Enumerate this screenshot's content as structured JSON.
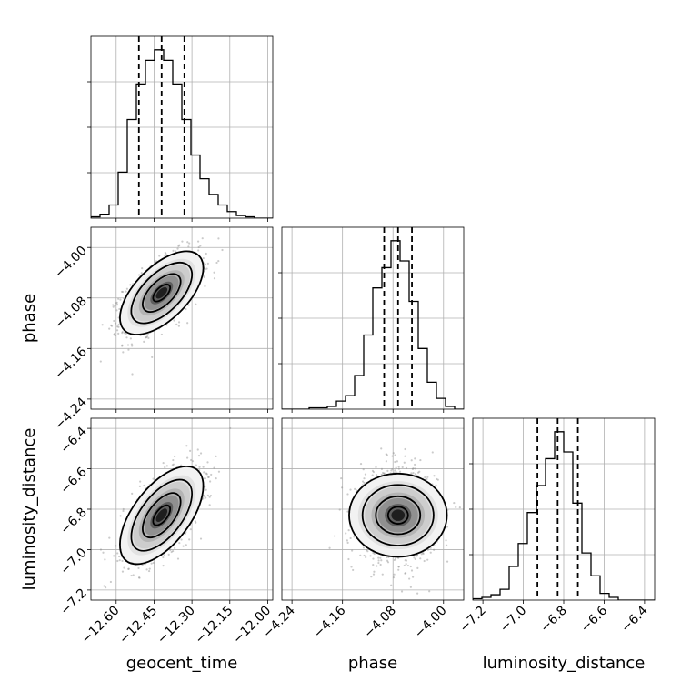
{
  "chart_data": {
    "type": "corner",
    "parameters": [
      {
        "key": "geocent_time",
        "label": "geocent_time",
        "range": [
          -12.7,
          -11.98
        ],
        "ticks": [
          -12.6,
          -12.45,
          -12.3,
          -12.15,
          -12.0
        ],
        "tick_labels": [
          "−12.60",
          "−12.45",
          "−12.30",
          "−12.15",
          "−12.00"
        ],
        "quantiles": [
          -12.51,
          -12.42,
          -12.33
        ]
      },
      {
        "key": "phase",
        "label": "phase",
        "range": [
          -4.256,
          -3.968
        ],
        "ticks": [
          -4.24,
          -4.16,
          -4.08,
          -4.0
        ],
        "tick_labels": [
          "−4.24",
          "−4.16",
          "−4.08",
          "−4.00"
        ],
        "quantiles": [
          -4.094,
          -4.072,
          -4.05
        ]
      },
      {
        "key": "luminosity_distance",
        "label": "luminosity_distance",
        "range": [
          -7.25,
          -6.35
        ],
        "ticks": [
          -7.2,
          -7.0,
          -6.8,
          -6.6,
          -6.4
        ],
        "tick_labels": [
          "−7.2",
          "−7.0",
          "−6.8",
          "−6.6",
          "−6.4"
        ],
        "quantiles": [
          -6.93,
          -6.83,
          -6.73
        ]
      }
    ],
    "histograms": [
      {
        "param": "geocent_time",
        "bin_edges": [
          -12.7,
          -12.664,
          -12.628,
          -12.592,
          -12.556,
          -12.52,
          -12.484,
          -12.448,
          -12.412,
          -12.376,
          -12.34,
          -12.304,
          -12.268,
          -12.232,
          -12.196,
          -12.16,
          -12.124,
          -12.088,
          -12.052,
          -12.016,
          -11.98
        ],
        "counts": [
          1,
          3,
          10,
          35,
          75,
          102,
          120,
          128,
          120,
          102,
          75,
          48,
          30,
          18,
          10,
          5,
          2,
          1,
          0,
          0
        ]
      },
      {
        "param": "phase",
        "bin_edges": [
          -4.256,
          -4.2416,
          -4.2272,
          -4.2128,
          -4.1984,
          -4.184,
          -4.1696,
          -4.1552,
          -4.1408,
          -4.1264,
          -4.112,
          -4.0976,
          -4.0832,
          -4.0688,
          -4.0544,
          -4.04,
          -4.0256,
          -4.0112,
          -3.9968,
          -3.9824,
          -3.968
        ],
        "counts": [
          0,
          0,
          0,
          1,
          1,
          2,
          6,
          10,
          25,
          55,
          90,
          105,
          125,
          110,
          80,
          45,
          20,
          8,
          2,
          0
        ]
      },
      {
        "param": "luminosity_distance",
        "bin_edges": [
          -7.25,
          -7.205,
          -7.16,
          -7.115,
          -7.07,
          -7.025,
          -6.98,
          -6.935,
          -6.89,
          -6.845,
          -6.8,
          -6.755,
          -6.71,
          -6.665,
          -6.62,
          -6.575,
          -6.53,
          -6.485,
          -6.44,
          -6.395,
          -6.35
        ],
        "counts": [
          1,
          2,
          4,
          8,
          25,
          42,
          65,
          85,
          105,
          125,
          110,
          72,
          35,
          18,
          5,
          2,
          0,
          0,
          0,
          0
        ]
      }
    ],
    "joint_distributions": [
      {
        "x": "geocent_time",
        "y": "phase",
        "mean": [
          -12.42,
          -4.072
        ],
        "sd": [
          0.075,
          0.03
        ],
        "corr": 0.6
      },
      {
        "x": "geocent_time",
        "y": "luminosity_distance",
        "mean": [
          -12.42,
          -6.83
        ],
        "sd": [
          0.075,
          0.11
        ],
        "corr": 0.6
      },
      {
        "x": "phase",
        "y": "luminosity_distance",
        "mean": [
          -4.072,
          -6.83
        ],
        "sd": [
          0.03,
          0.11
        ],
        "corr": 0.0
      }
    ],
    "grid": true,
    "legend": "none"
  }
}
